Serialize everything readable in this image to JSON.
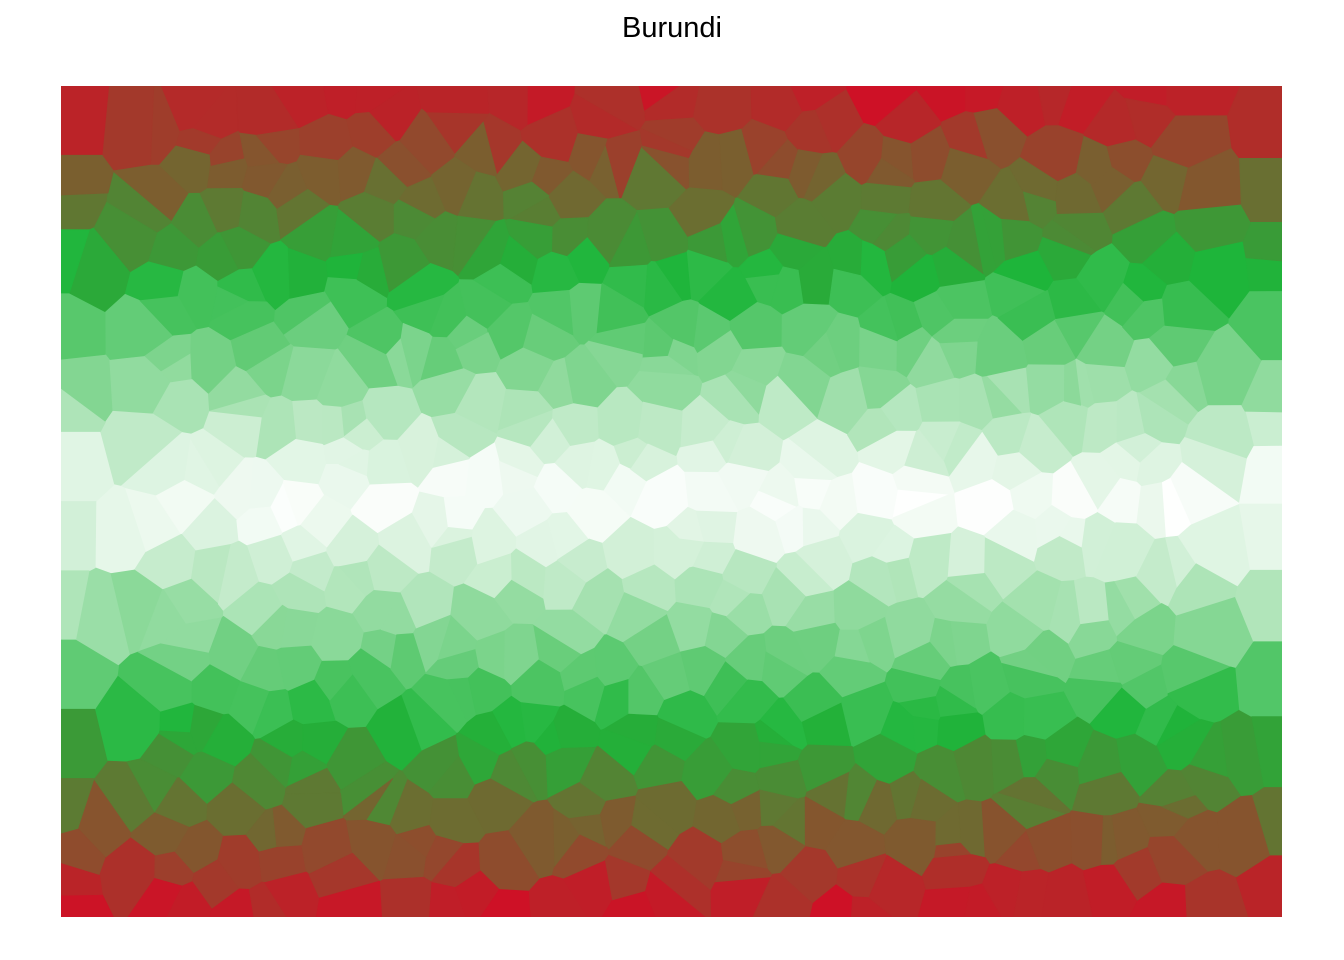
{
  "title": "Burundi",
  "palette": {
    "red": "#ce1126",
    "green": "#1eb53a",
    "white": "#ffffff"
  },
  "style": "Voronoi mosaic with colour varying smoothly from red at top and bottom to green and then white at the centre"
}
